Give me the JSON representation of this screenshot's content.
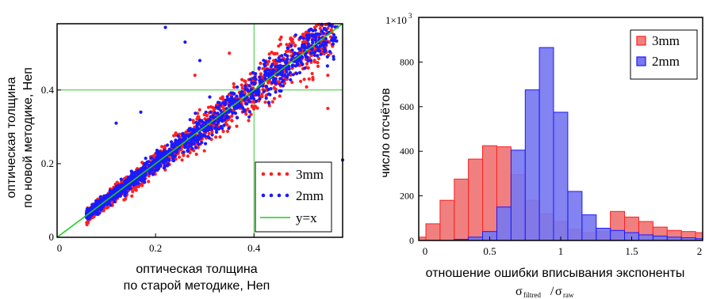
{
  "colors": {
    "red": "#ff2020",
    "blue": "#1a1aff",
    "green": "#22cc22",
    "hist_red_fill": "#f08080",
    "hist_blue_fill": "#7878f0",
    "grid": "#33cc33"
  },
  "chart_data": [
    {
      "type": "scatter",
      "xlabel_line1": "оптическая толщина",
      "xlabel_line2": "по старой методике, Неп",
      "ylabel_line1": "оптическая толщина",
      "ylabel_line2": "по новой методике, Неп",
      "xlim": [
        0,
        0.58
      ],
      "ylim": [
        0,
        0.58
      ],
      "x_ticks": [
        0,
        0.2,
        0.4
      ],
      "x_tick_labels": [
        "0",
        "0.2",
        "0.4"
      ],
      "y_ticks": [
        0,
        0.2,
        0.4
      ],
      "y_tick_labels": [
        "0",
        "0.2",
        "0.4"
      ],
      "grid_x": [
        0.4
      ],
      "grid_y": [
        0.4
      ],
      "legend_position": "bottom-right",
      "series": [
        {
          "name": "3mm",
          "marker": "dot",
          "color": "red",
          "n_points": 1400,
          "x_range": [
            0.06,
            0.56
          ],
          "relative_scatter": 0.12
        },
        {
          "name": "2mm",
          "marker": "dot",
          "color": "blue",
          "n_points": 1300,
          "x_range": [
            0.06,
            0.57
          ],
          "relative_scatter": 0.09
        },
        {
          "name": "y=x",
          "marker": "line",
          "color": "green",
          "line": [
            [
              0,
              0
            ],
            [
              0.58,
              0.58
            ]
          ]
        }
      ],
      "outliers": [
        {
          "series": "2mm",
          "x": 0.22,
          "y": 0.57
        },
        {
          "series": "2mm",
          "x": 0.26,
          "y": 0.53
        },
        {
          "series": "2mm",
          "x": 0.29,
          "y": 0.48
        },
        {
          "series": "2mm",
          "x": 0.12,
          "y": 0.31
        },
        {
          "series": "2mm",
          "x": 0.17,
          "y": 0.34
        },
        {
          "series": "2mm",
          "x": 0.58,
          "y": 0.21
        },
        {
          "series": "2mm",
          "x": 0.52,
          "y": 0.55
        },
        {
          "series": "3mm",
          "x": 0.55,
          "y": 0.44
        },
        {
          "series": "3mm",
          "x": 0.44,
          "y": 0.48
        },
        {
          "series": "3mm",
          "x": 0.35,
          "y": 0.5
        },
        {
          "series": "3mm",
          "x": 0.28,
          "y": 0.44
        },
        {
          "series": "3mm",
          "x": 0.55,
          "y": 0.35
        }
      ]
    },
    {
      "type": "bar",
      "subtype": "histogram",
      "xlabel": "отношение ошибки вписывания экспоненты",
      "xlabel_formula": {
        "sigma": "σ",
        "sub1": "filtred",
        "slash": "/",
        "sub2": "raw"
      },
      "ylabel": "число отсчётов",
      "xlim": [
        0,
        2
      ],
      "ylim": [
        0,
        1000
      ],
      "bin_width": 0.1,
      "bin_edges_start": -0.05,
      "x_ticks": [
        0,
        0.5,
        1,
        1.5,
        2
      ],
      "x_tick_labels": [
        "0",
        "0.5",
        "1",
        "1.5",
        "2"
      ],
      "y_ticks": [
        0,
        200,
        400,
        600,
        800,
        1000
      ],
      "y_tick_labels": [
        "0",
        "200",
        "400",
        "600",
        "800",
        ""
      ],
      "y_top_label": {
        "base": "1×10",
        "exp": "3"
      },
      "legend_position": "top-right",
      "series": [
        {
          "name": "3mm",
          "color": "red",
          "values": [
            15,
            75,
            180,
            275,
            365,
            425,
            420,
            295,
            180,
            120,
            85,
            50,
            35,
            40,
            130,
            105,
            85,
            60,
            45,
            40,
            35
          ]
        },
        {
          "name": "2mm",
          "color": "blue",
          "values": [
            0,
            0,
            0,
            5,
            15,
            40,
            150,
            405,
            675,
            865,
            575,
            220,
            115,
            55,
            45,
            35,
            25,
            20,
            15,
            12,
            8
          ]
        }
      ]
    }
  ]
}
